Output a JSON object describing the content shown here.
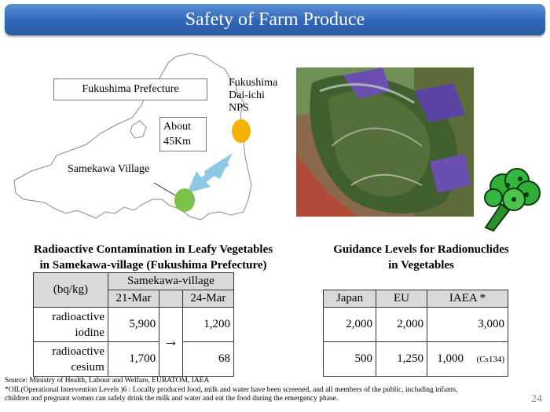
{
  "title": "Safety of Farm Produce",
  "map": {
    "prefecture_label": "Fukushima Prefecture",
    "nps_label_lines": [
      "Fukushima",
      "Dai-ichi",
      "NPS"
    ],
    "distance_lines": [
      "About",
      "45Km"
    ],
    "village_label": "Samekawa Village",
    "colors": {
      "nps_marker": "#f6b200",
      "village_marker": "#7cc24a",
      "arrow": "#8ec9e3"
    }
  },
  "contamination": {
    "heading_line1": "Radioactive Contamination in Leafy Vegetables",
    "heading_line2": "in Samekawa-village (Fukushima Prefecture)",
    "unit": "(bq/kg)",
    "group_header": "Samekawa-village",
    "dates": [
      "21-Mar",
      "24-Mar"
    ],
    "arrow": "→",
    "rows": [
      {
        "label_line1": "radioactive",
        "label_line2": "iodine",
        "v1": "5,900",
        "v2": "1,200"
      },
      {
        "label_line1": "radioactive",
        "label_line2": "cesium",
        "v1": "1,700",
        "v2": "68"
      }
    ]
  },
  "guidance": {
    "heading_line1": "Guidance Levels for Radionuclides",
    "heading_line2": "in Vegetables",
    "columns": [
      "Japan",
      "EU",
      "IAEA *"
    ],
    "rows": [
      {
        "japan": "2,000",
        "eu": "2,000",
        "iaea": "3,000",
        "iaea_note": ""
      },
      {
        "japan": "500",
        "eu": "1,250",
        "iaea": "1,000",
        "iaea_note": "(Cs134)"
      }
    ]
  },
  "notes": {
    "source": "Source: Ministry of  Health, Labour and Welfare, EURATOM, IAEA",
    "oil_line1": "*OIL(Operational Intervention Levels )6 :  Locally produced food, milk and water have been screened, and all members of  the public, including infants,",
    "oil_line2": "children and pregnant women can safely drink the  milk and water and eat the food during the emergency phase."
  },
  "page_number": "24"
}
